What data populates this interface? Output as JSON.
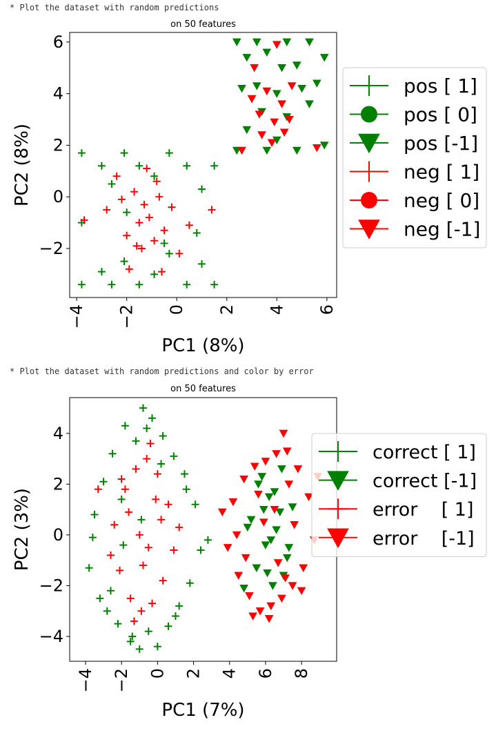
{
  "chart_data": [
    {
      "type": "scatter",
      "caption": "* Plot the dataset with random predictions",
      "title": "on 50 features",
      "xlabel": "PC1 (8%)",
      "ylabel": "PC2 (8%)",
      "xlim": [
        -4.28,
        6.39
      ],
      "ylim": [
        -3.9,
        6.37
      ],
      "xticks": [
        {
          "value": -4,
          "label": "−4"
        },
        {
          "value": -2,
          "label": "−2"
        },
        0,
        2,
        4,
        6
      ],
      "yticks": [
        {
          "value": -2,
          "label": "−2"
        },
        0,
        2,
        4,
        6
      ],
      "series": [
        {
          "name": "pos [ 1]",
          "color": "#008000",
          "marker": "+",
          "x": [
            -3.8,
            -3.8,
            -3.8,
            -3.0,
            -3.0,
            -2.6,
            -2.6,
            -2.1,
            -2.1,
            -1.5,
            -1.5,
            -0.9,
            -0.9,
            -0.3,
            -0.3,
            0.4,
            0.4,
            1.0,
            1.0,
            1.5,
            1.5,
            -2.0,
            -0.5,
            0.8
          ],
          "y": [
            1.7,
            -1.0,
            -3.4,
            1.2,
            -2.9,
            -3.4,
            0.5,
            1.7,
            -2.5,
            1.2,
            -3.4,
            0.8,
            -3.0,
            1.7,
            -2.2,
            1.2,
            -3.4,
            0.3,
            -2.6,
            1.2,
            -3.4,
            -0.6,
            -1.8,
            -1.4
          ]
        },
        {
          "name": "pos [ 0]",
          "color": "#008000",
          "marker": "o",
          "x": [],
          "y": []
        },
        {
          "name": "pos [-1]",
          "color": "#008000",
          "marker": "v",
          "x": [
            2.4,
            2.4,
            2.8,
            2.8,
            3.2,
            3.2,
            3.6,
            3.6,
            4.0,
            4.0,
            4.4,
            4.4,
            4.8,
            4.8,
            5.3,
            5.3,
            5.9,
            5.9,
            2.6,
            3.4,
            4.2,
            5.0,
            5.6,
            3.0
          ],
          "y": [
            6.0,
            1.8,
            5.4,
            2.6,
            6.0,
            4.3,
            5.6,
            1.8,
            4.0,
            2.2,
            6.0,
            3.1,
            5.1,
            1.8,
            6.0,
            3.6,
            5.4,
            2.0,
            4.2,
            3.3,
            5.0,
            4.2,
            4.4,
            3.8
          ]
        },
        {
          "name": "neg [ 1]",
          "color": "#ff0000",
          "marker": "+",
          "x": [
            -2.8,
            -2.4,
            -2.0,
            -1.7,
            -1.4,
            -1.1,
            -0.8,
            -0.5,
            -0.2,
            0.1,
            -1.9,
            -1.2,
            -0.6,
            -1.5,
            -0.9,
            -2.2,
            0.5,
            -3.7,
            1.4,
            -1.3,
            -0.7,
            -1.6
          ],
          "y": [
            -0.5,
            0.8,
            -1.5,
            0.2,
            -2.0,
            -0.8,
            0.6,
            -1.3,
            -0.4,
            -2.2,
            -2.8,
            1.1,
            -2.9,
            -1.0,
            -1.7,
            -0.1,
            -1.1,
            -0.9,
            -0.5,
            -0.3,
            0.0,
            -1.9
          ]
        },
        {
          "name": "neg [ 0]",
          "color": "#ff0000",
          "marker": "o",
          "x": [],
          "y": []
        },
        {
          "name": "neg [-1]",
          "color": "#ff0000",
          "marker": "v",
          "x": [
            3.0,
            3.3,
            3.6,
            3.9,
            4.2,
            4.5,
            3.4,
            4.0,
            3.8,
            4.6,
            5.6,
            2.6,
            3.1,
            4.3
          ],
          "y": [
            3.8,
            3.2,
            4.1,
            2.9,
            3.6,
            3.0,
            2.4,
            5.9,
            2.1,
            4.3,
            1.9,
            1.8,
            5.0,
            2.5
          ]
        }
      ]
    },
    {
      "type": "scatter",
      "caption": "* Plot the dataset with random predictions and color by error",
      "title": "on 50 features",
      "xlabel": "PC1 (7%)",
      "ylabel": "PC2 (3%)",
      "xlim": [
        -4.88,
        9.95
      ],
      "ylim": [
        -4.98,
        5.41
      ],
      "xticks": [
        {
          "value": -4,
          "label": "−4"
        },
        {
          "value": -2,
          "label": "−2"
        },
        0,
        2,
        4,
        6,
        8
      ],
      "yticks": [
        {
          "value": -4,
          "label": "−4"
        },
        {
          "value": -2,
          "label": "−2"
        },
        0,
        2,
        4
      ],
      "series": [
        {
          "name": "correct [ 1]",
          "color": "#008000",
          "marker": "+",
          "x": [
            -3.8,
            -3.5,
            -3.2,
            -3.0,
            -2.8,
            -2.5,
            -2.2,
            -2.0,
            -1.8,
            -1.5,
            -1.2,
            -1.0,
            -0.8,
            -0.5,
            -0.3,
            0.0,
            0.3,
            0.6,
            0.9,
            1.2,
            1.5,
            1.8,
            2.1,
            2.4,
            -1.4,
            -0.6,
            -2.6,
            0.2,
            1.0,
            -1.9,
            -0.9,
            2.8,
            -3.6,
            1.6
          ],
          "y": [
            -1.3,
            0.8,
            -2.5,
            2.1,
            -3.0,
            3.2,
            -3.5,
            1.4,
            4.3,
            -4.2,
            3.7,
            -4.5,
            5.0,
            -3.8,
            4.6,
            -4.4,
            3.9,
            -3.6,
            3.1,
            -2.8,
            2.4,
            -1.9,
            1.2,
            -0.6,
            -4.0,
            4.2,
            -2.2,
            2.8,
            -3.2,
            -0.4,
            0.6,
            -0.2,
            -0.1,
            1.8
          ]
        },
        {
          "name": "correct [-1]",
          "color": "#008000",
          "marker": "v",
          "x": [
            4.8,
            5.2,
            5.5,
            5.8,
            6.0,
            6.2,
            6.4,
            6.6,
            6.9,
            7.2,
            7.5,
            5.6,
            6.1,
            6.5,
            7.0,
            5.0,
            6.8,
            6.3,
            5.9,
            7.3
          ],
          "y": [
            -2.1,
            0.6,
            -1.3,
            2.3,
            -0.4,
            1.5,
            -2.0,
            0.2,
            2.6,
            -0.9,
            1.1,
            2.0,
            -1.5,
            1.7,
            -1.6,
            0.3,
            0.9,
            -0.2,
            1.0,
            -0.5
          ]
        },
        {
          "name": "error    [ 1]",
          "color": "#ff0000",
          "marker": "+",
          "x": [
            -2.4,
            -2.1,
            -1.8,
            -1.5,
            -1.2,
            -0.9,
            -0.6,
            -0.3,
            0.0,
            0.3,
            0.6,
            -1.0,
            -0.5,
            -1.6,
            0.2,
            -2.6,
            -0.8,
            -0.1,
            0.9,
            -1.3,
            -0.4,
            -2.0,
            1.2,
            -3.3
          ],
          "y": [
            0.4,
            -1.4,
            1.8,
            -2.5,
            2.6,
            -3.0,
            3.0,
            -2.7,
            2.4,
            -1.8,
            1.2,
            0.0,
            -0.5,
            0.9,
            0.6,
            -0.8,
            -1.2,
            1.4,
            -0.6,
            -3.4,
            3.6,
            2.2,
            0.3,
            1.8
          ]
        },
        {
          "name": "error    [-1]",
          "color": "#ff0000",
          "marker": "v",
          "x": [
            3.6,
            3.9,
            4.2,
            4.5,
            4.8,
            5.1,
            5.4,
            5.7,
            6.0,
            6.3,
            6.6,
            6.9,
            7.2,
            7.5,
            7.8,
            8.1,
            8.4,
            8.7,
            5.3,
            6.2,
            7.0,
            7.6,
            4.4,
            5.9,
            6.7,
            8.0,
            7.3,
            4.9,
            5.6,
            6.5,
            8.9,
            7.1
          ],
          "y": [
            0.9,
            -0.5,
            1.3,
            -1.6,
            2.2,
            -2.4,
            2.7,
            -3.0,
            2.9,
            -2.8,
            3.2,
            -2.5,
            3.3,
            -2.0,
            2.6,
            -1.3,
            1.5,
            -0.2,
            -3.2,
            -3.3,
            4.0,
            0.4,
            0.0,
            0.5,
            -1.1,
            -2.2,
            2.0,
            -0.9,
            1.6,
            1.0,
            2.3,
            -1.7
          ]
        }
      ]
    }
  ]
}
